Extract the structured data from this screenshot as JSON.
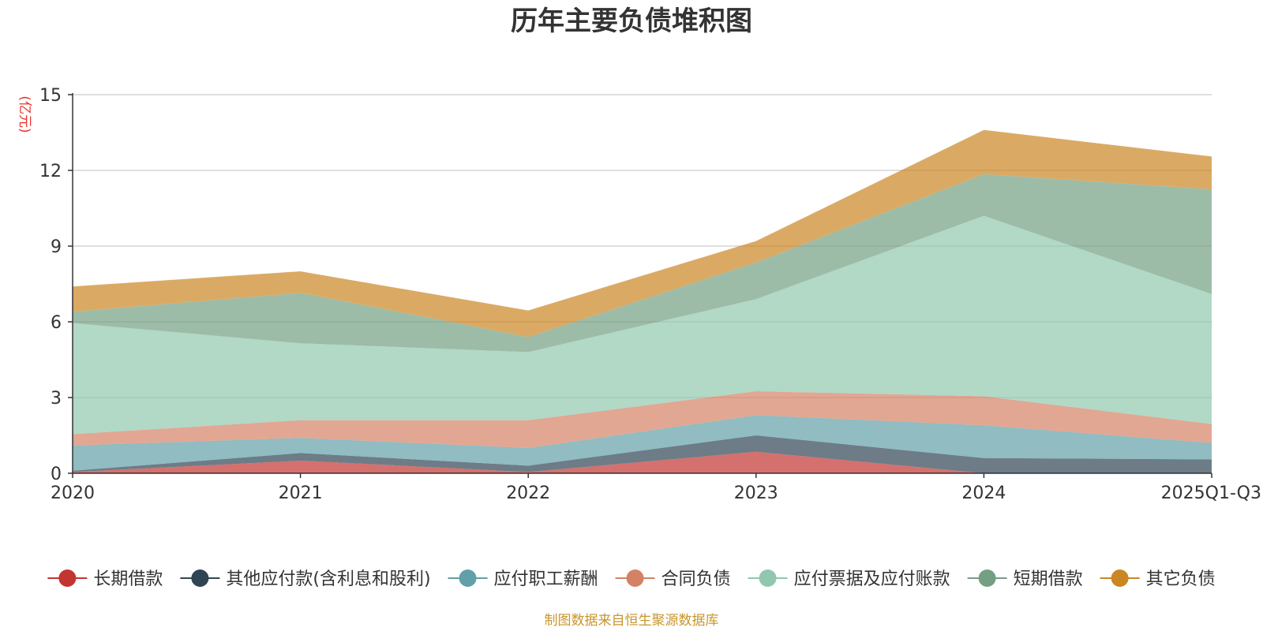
{
  "chart_data": {
    "type": "area",
    "stacked": true,
    "title": "历年主要负债堆积图",
    "ylabel": "(亿元)",
    "xlabel": "",
    "ylim": [
      0,
      15
    ],
    "yticks": [
      0,
      3,
      6,
      9,
      12,
      15
    ],
    "grid": true,
    "legend_position": "bottom",
    "categories": [
      "2020",
      "2021",
      "2022",
      "2023",
      "2024",
      "2025Q1-Q3"
    ],
    "series": [
      {
        "name": "长期借款",
        "color": "#c23531",
        "values": [
          0.05,
          0.5,
          0.05,
          0.85,
          0.0,
          0.0
        ]
      },
      {
        "name": "其他应付款(含利息和股利)",
        "color": "#2f4554",
        "values": [
          0.05,
          0.3,
          0.25,
          0.65,
          0.6,
          0.55
        ]
      },
      {
        "name": "应付职工薪酬",
        "color": "#61a0a8",
        "values": [
          1.0,
          0.6,
          0.7,
          0.8,
          1.3,
          0.65
        ]
      },
      {
        "name": "合同负债",
        "color": "#d48265",
        "values": [
          0.45,
          0.7,
          1.1,
          0.95,
          1.15,
          0.75
        ]
      },
      {
        "name": "应付票据及应付账款",
        "color": "#91c7ae",
        "values": [
          4.4,
          3.05,
          2.7,
          3.65,
          7.15,
          5.15
        ]
      },
      {
        "name": "短期借款",
        "color": "#749f83",
        "values": [
          0.45,
          2.0,
          0.6,
          1.45,
          1.65,
          4.15
        ]
      },
      {
        "name": "其它负债",
        "color": "#ca8622",
        "values": [
          1.0,
          0.85,
          1.05,
          0.85,
          1.75,
          1.3
        ]
      }
    ]
  },
  "footer": "制图数据来自恒生聚源数据库"
}
